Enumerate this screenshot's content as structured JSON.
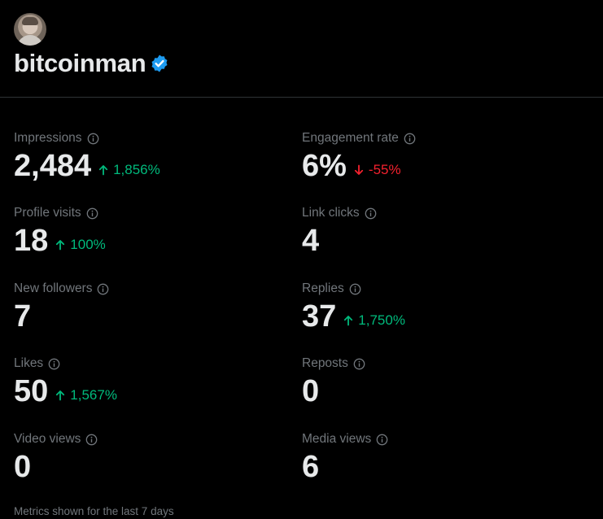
{
  "profile": {
    "username": "bitcoinman",
    "verified": true
  },
  "colors": {
    "background": "#000000",
    "text_primary": "#e7e9ea",
    "text_secondary": "#71767b",
    "positive": "#00ba7c",
    "negative": "#f4212e",
    "verified_badge": "#1d9bf0"
  },
  "metrics": [
    {
      "label": "Impressions",
      "value": "2,484",
      "delta": "1,856%",
      "direction": "up",
      "icon": "info-icon"
    },
    {
      "label": "Engagement rate",
      "value": "6%",
      "delta": "-55%",
      "direction": "down",
      "icon": "info-icon"
    },
    {
      "label": "Profile visits",
      "value": "18",
      "delta": "100%",
      "direction": "up",
      "icon": "info-icon"
    },
    {
      "label": "Link clicks",
      "value": "4",
      "delta": "",
      "direction": "",
      "icon": "info-icon"
    },
    {
      "label": "New followers",
      "value": "7",
      "delta": "",
      "direction": "",
      "icon": "info-icon"
    },
    {
      "label": "Replies",
      "value": "37",
      "delta": "1,750%",
      "direction": "up",
      "icon": "info-icon"
    },
    {
      "label": "Likes",
      "value": "50",
      "delta": "1,567%",
      "direction": "up",
      "icon": "info-icon"
    },
    {
      "label": "Reposts",
      "value": "0",
      "delta": "",
      "direction": "",
      "icon": "info-icon"
    },
    {
      "label": "Video views",
      "value": "0",
      "delta": "",
      "direction": "",
      "icon": "info-icon"
    },
    {
      "label": "Media views",
      "value": "6",
      "delta": "",
      "direction": "",
      "icon": "info-icon"
    }
  ],
  "footer": {
    "note": "Metrics shown for the last 7 days"
  }
}
